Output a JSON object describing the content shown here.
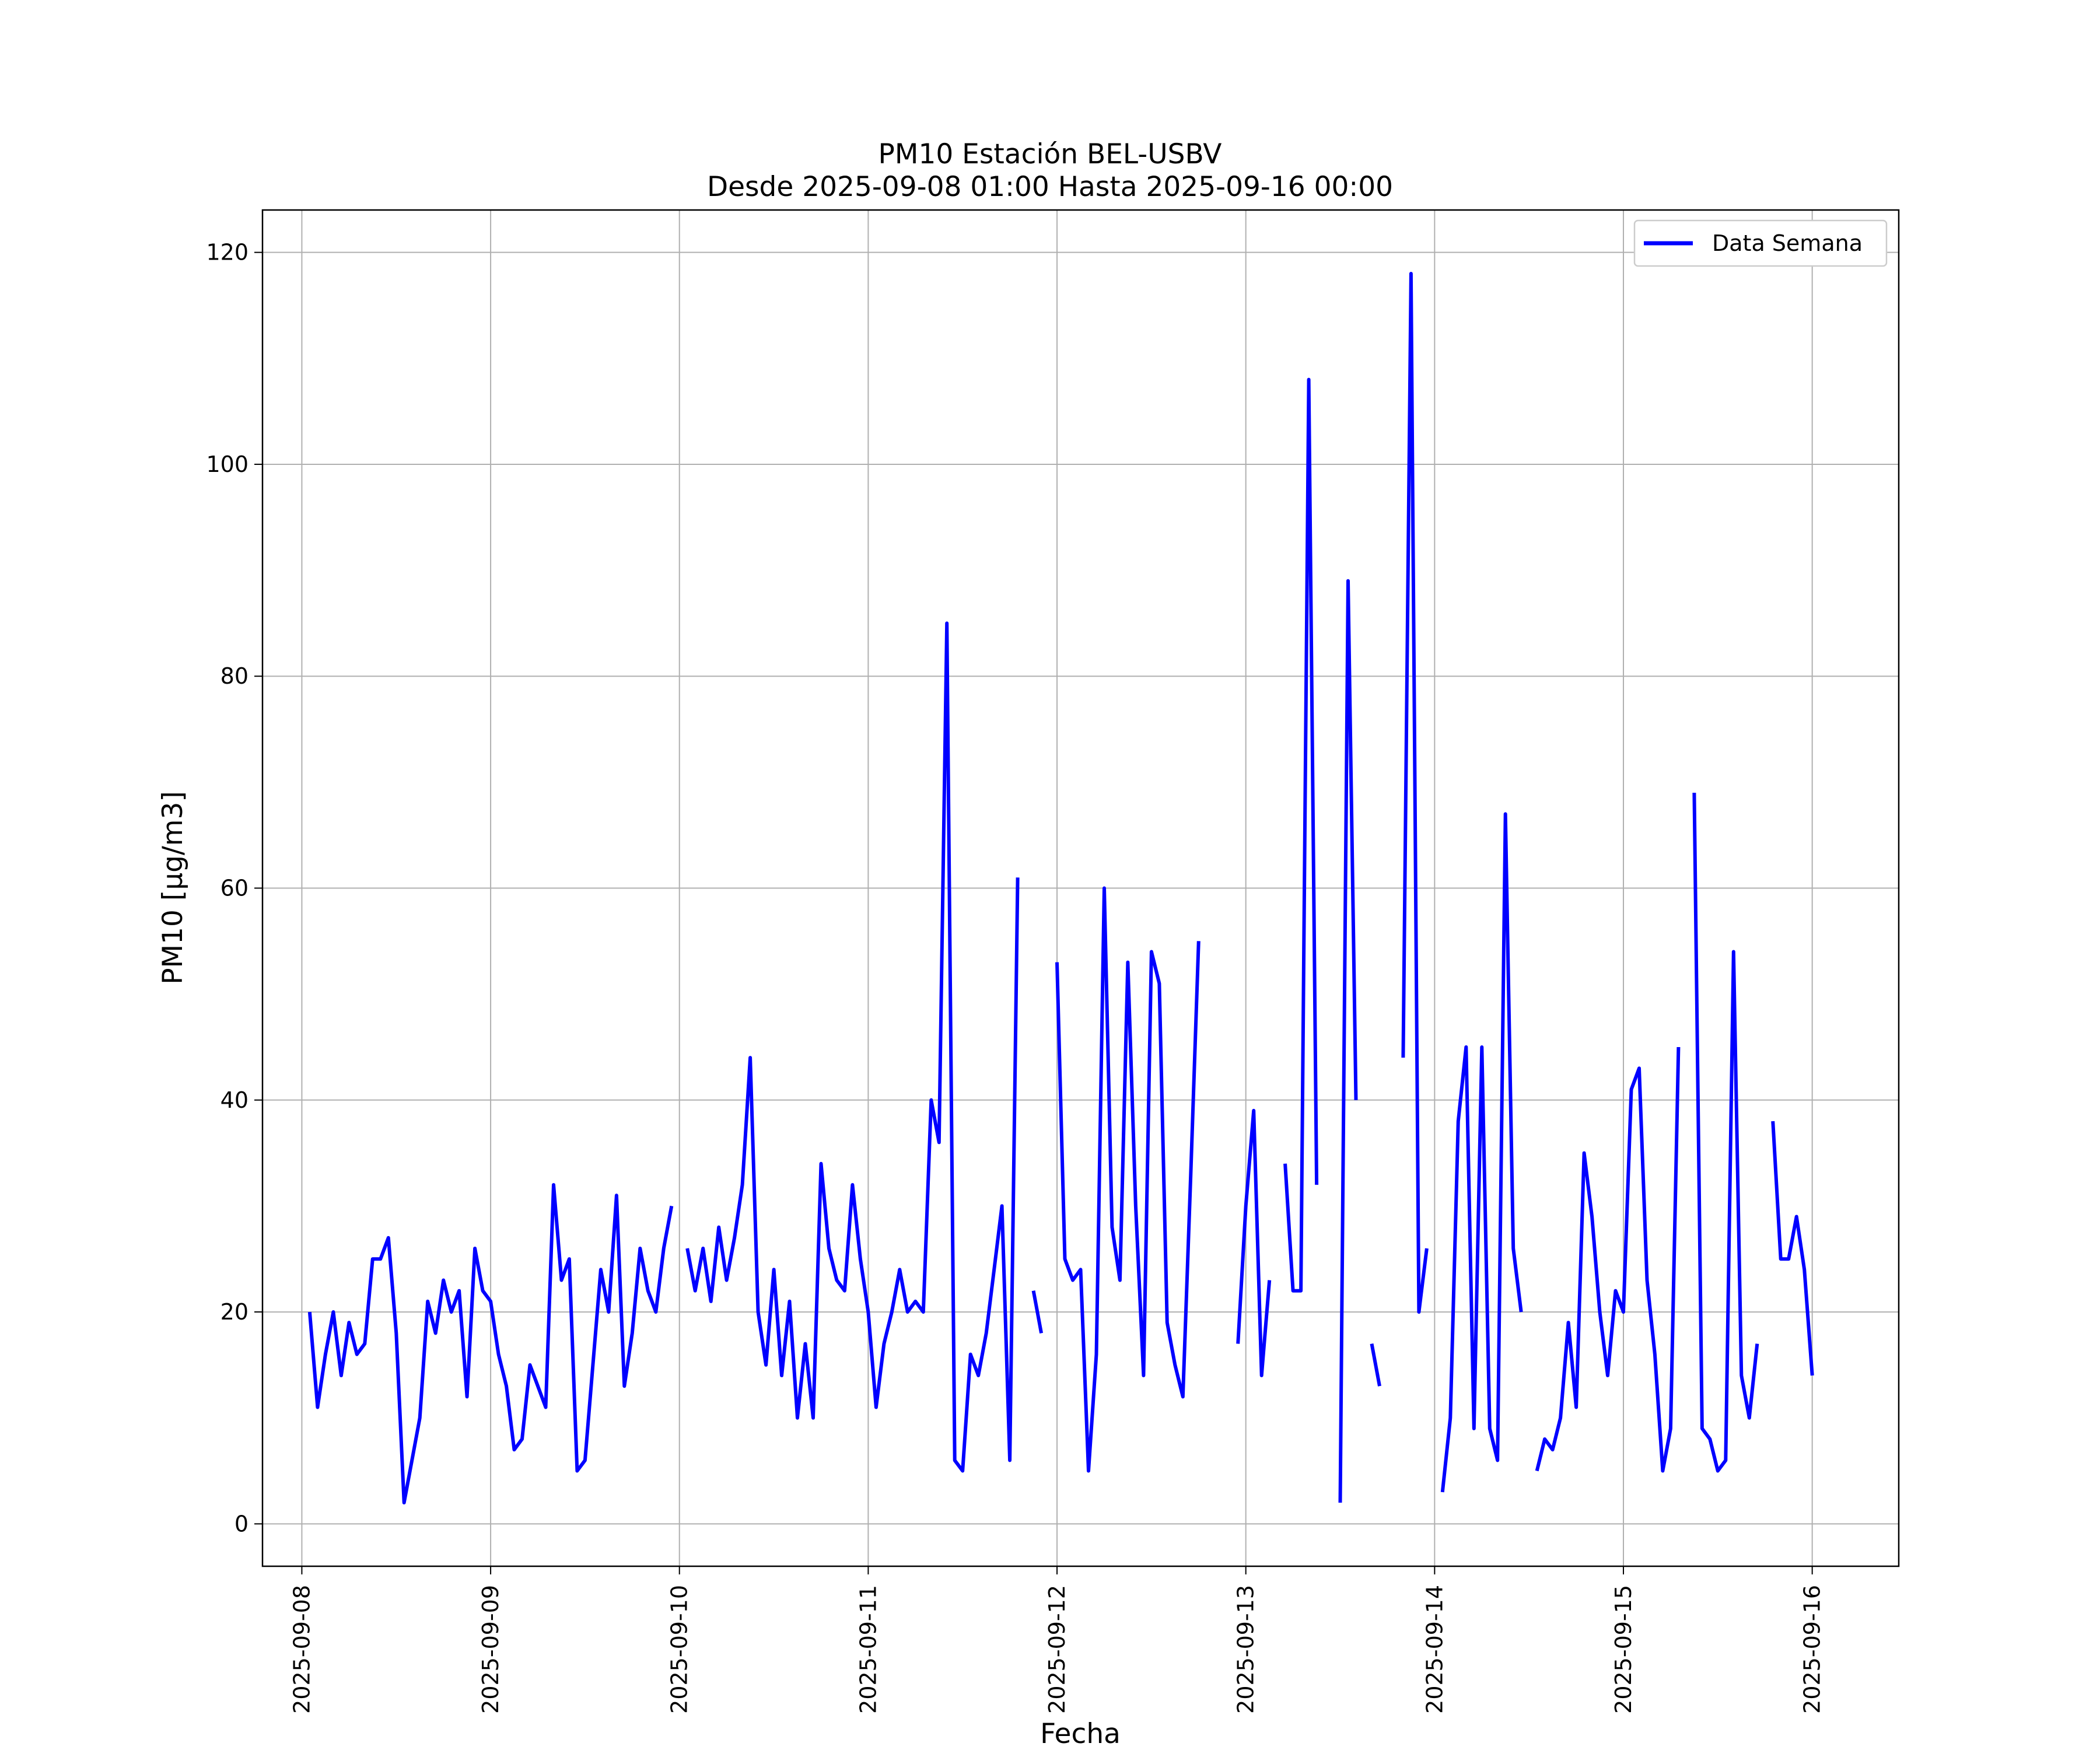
{
  "chart_data": {
    "type": "line",
    "title": "PM10 Estación BEL-USBV",
    "subtitle": "Desde 2025-09-08 01:00 Hasta 2025-09-16 00:00",
    "xlabel": "Fecha",
    "ylabel": "PM10 [μg/m3]",
    "xlim": [
      "2025-09-07 19:00",
      "2025-09-16 11:00"
    ],
    "ylim": [
      -4,
      124
    ],
    "grid": true,
    "legend_position": "top-right",
    "x_ticks": [
      "2025-09-08",
      "2025-09-09",
      "2025-09-10",
      "2025-09-11",
      "2025-09-12",
      "2025-09-13",
      "2025-09-14",
      "2025-09-15",
      "2025-09-16"
    ],
    "y_ticks": [
      "0",
      "20",
      "40",
      "60",
      "80",
      "100",
      "120"
    ],
    "series": [
      {
        "name": "Data Semana",
        "color": "#0000ff",
        "segments": [
          [
            [
              "2025-09-08 01:00",
              20
            ],
            [
              "2025-09-08 02:00",
              11
            ],
            [
              "2025-09-08 03:00",
              16
            ],
            [
              "2025-09-08 04:00",
              20
            ],
            [
              "2025-09-08 05:00",
              14
            ],
            [
              "2025-09-08 06:00",
              19
            ],
            [
              "2025-09-08 07:00",
              16
            ],
            [
              "2025-09-08 08:00",
              17
            ],
            [
              "2025-09-08 09:00",
              25
            ],
            [
              "2025-09-08 10:00",
              25
            ],
            [
              "2025-09-08 11:00",
              27
            ],
            [
              "2025-09-08 12:00",
              18
            ],
            [
              "2025-09-08 13:00",
              2
            ],
            [
              "2025-09-08 14:00",
              6
            ],
            [
              "2025-09-08 15:00",
              10
            ],
            [
              "2025-09-08 16:00",
              21
            ],
            [
              "2025-09-08 17:00",
              18
            ],
            [
              "2025-09-08 18:00",
              23
            ],
            [
              "2025-09-08 19:00",
              20
            ],
            [
              "2025-09-08 20:00",
              22
            ],
            [
              "2025-09-08 21:00",
              12
            ],
            [
              "2025-09-08 22:00",
              26
            ],
            [
              "2025-09-08 23:00",
              22
            ],
            [
              "2025-09-09 00:00",
              21
            ],
            [
              "2025-09-09 01:00",
              16
            ],
            [
              "2025-09-09 02:00",
              13
            ],
            [
              "2025-09-09 03:00",
              7
            ],
            [
              "2025-09-09 04:00",
              8
            ],
            [
              "2025-09-09 05:00",
              15
            ],
            [
              "2025-09-09 06:00",
              13
            ],
            [
              "2025-09-09 07:00",
              11
            ],
            [
              "2025-09-09 08:00",
              32
            ],
            [
              "2025-09-09 09:00",
              23
            ],
            [
              "2025-09-09 10:00",
              25
            ],
            [
              "2025-09-09 11:00",
              5
            ],
            [
              "2025-09-09 12:00",
              6
            ],
            [
              "2025-09-09 13:00",
              15
            ],
            [
              "2025-09-09 14:00",
              24
            ],
            [
              "2025-09-09 15:00",
              20
            ],
            [
              "2025-09-09 16:00",
              31
            ],
            [
              "2025-09-09 17:00",
              13
            ],
            [
              "2025-09-09 18:00",
              18
            ],
            [
              "2025-09-09 19:00",
              26
            ],
            [
              "2025-09-09 20:00",
              22
            ],
            [
              "2025-09-09 21:00",
              20
            ],
            [
              "2025-09-09 22:00",
              26
            ],
            [
              "2025-09-09 23:00",
              30
            ]
          ],
          [
            [
              "2025-09-10 01:00",
              26
            ],
            [
              "2025-09-10 02:00",
              22
            ],
            [
              "2025-09-10 03:00",
              26
            ],
            [
              "2025-09-10 04:00",
              21
            ],
            [
              "2025-09-10 05:00",
              28
            ],
            [
              "2025-09-10 06:00",
              23
            ],
            [
              "2025-09-10 07:00",
              27
            ],
            [
              "2025-09-10 08:00",
              32
            ],
            [
              "2025-09-10 09:00",
              44
            ],
            [
              "2025-09-10 10:00",
              20
            ],
            [
              "2025-09-10 11:00",
              15
            ],
            [
              "2025-09-10 12:00",
              24
            ],
            [
              "2025-09-10 13:00",
              14
            ],
            [
              "2025-09-10 14:00",
              21
            ],
            [
              "2025-09-10 15:00",
              10
            ],
            [
              "2025-09-10 16:00",
              17
            ],
            [
              "2025-09-10 17:00",
              10
            ],
            [
              "2025-09-10 18:00",
              34
            ],
            [
              "2025-09-10 19:00",
              26
            ],
            [
              "2025-09-10 20:00",
              23
            ],
            [
              "2025-09-10 21:00",
              22
            ],
            [
              "2025-09-10 22:00",
              32
            ],
            [
              "2025-09-10 23:00",
              25
            ],
            [
              "2025-09-11 00:00",
              20
            ],
            [
              "2025-09-11 01:00",
              11
            ],
            [
              "2025-09-11 02:00",
              17
            ],
            [
              "2025-09-11 03:00",
              20
            ],
            [
              "2025-09-11 04:00",
              24
            ],
            [
              "2025-09-11 05:00",
              20
            ],
            [
              "2025-09-11 06:00",
              21
            ],
            [
              "2025-09-11 07:00",
              20
            ],
            [
              "2025-09-11 08:00",
              40
            ],
            [
              "2025-09-11 09:00",
              36
            ],
            [
              "2025-09-11 10:00",
              85
            ],
            [
              "2025-09-11 11:00",
              6
            ],
            [
              "2025-09-11 12:00",
              5
            ],
            [
              "2025-09-11 13:00",
              16
            ],
            [
              "2025-09-11 14:00",
              14
            ],
            [
              "2025-09-11 15:00",
              18
            ],
            [
              "2025-09-11 16:00",
              24
            ],
            [
              "2025-09-11 17:00",
              30
            ],
            [
              "2025-09-11 18:00",
              6
            ],
            [
              "2025-09-11 19:00",
              61
            ]
          ],
          [
            [
              "2025-09-11 21:00",
              22
            ],
            [
              "2025-09-11 22:00",
              18
            ]
          ],
          [
            [
              "2025-09-12 00:00",
              53
            ],
            [
              "2025-09-12 01:00",
              25
            ],
            [
              "2025-09-12 02:00",
              23
            ],
            [
              "2025-09-12 03:00",
              24
            ],
            [
              "2025-09-12 04:00",
              5
            ],
            [
              "2025-09-12 05:00",
              16
            ],
            [
              "2025-09-12 06:00",
              60
            ],
            [
              "2025-09-12 07:00",
              28
            ],
            [
              "2025-09-12 08:00",
              23
            ],
            [
              "2025-09-12 09:00",
              53
            ],
            [
              "2025-09-12 10:00",
              30
            ],
            [
              "2025-09-12 11:00",
              14
            ],
            [
              "2025-09-12 12:00",
              54
            ],
            [
              "2025-09-12 13:00",
              51
            ],
            [
              "2025-09-12 14:00",
              19
            ],
            [
              "2025-09-12 15:00",
              15
            ],
            [
              "2025-09-12 16:00",
              12
            ],
            [
              "2025-09-12 17:00",
              33
            ],
            [
              "2025-09-12 18:00",
              55
            ]
          ],
          [
            [
              "2025-09-12 23:00",
              17
            ],
            [
              "2025-09-13 00:00",
              30
            ],
            [
              "2025-09-13 01:00",
              39
            ],
            [
              "2025-09-13 02:00",
              14
            ],
            [
              "2025-09-13 03:00",
              23
            ]
          ],
          [
            [
              "2025-09-13 05:00",
              34
            ],
            [
              "2025-09-13 06:00",
              22
            ],
            [
              "2025-09-13 07:00",
              22
            ],
            [
              "2025-09-13 08:00",
              108
            ],
            [
              "2025-09-13 09:00",
              32
            ]
          ],
          [
            [
              "2025-09-13 12:00",
              2
            ],
            [
              "2025-09-13 13:00",
              89
            ],
            [
              "2025-09-13 14:00",
              40
            ]
          ],
          [
            [
              "2025-09-13 16:00",
              17
            ],
            [
              "2025-09-13 17:00",
              13
            ]
          ],
          [
            [
              "2025-09-13 20:00",
              44
            ],
            [
              "2025-09-13 21:00",
              118
            ],
            [
              "2025-09-13 22:00",
              20
            ],
            [
              "2025-09-13 23:00",
              26
            ]
          ],
          [
            [
              "2025-09-14 01:00",
              3
            ],
            [
              "2025-09-14 02:00",
              10
            ],
            [
              "2025-09-14 03:00",
              38
            ],
            [
              "2025-09-14 04:00",
              45
            ],
            [
              "2025-09-14 05:00",
              9
            ],
            [
              "2025-09-14 06:00",
              45
            ],
            [
              "2025-09-14 07:00",
              9
            ],
            [
              "2025-09-14 08:00",
              6
            ],
            [
              "2025-09-14 09:00",
              67
            ],
            [
              "2025-09-14 10:00",
              26
            ],
            [
              "2025-09-14 11:00",
              20
            ]
          ],
          [
            [
              "2025-09-14 13:00",
              5
            ],
            [
              "2025-09-14 14:00",
              8
            ],
            [
              "2025-09-14 15:00",
              7
            ],
            [
              "2025-09-14 16:00",
              10
            ],
            [
              "2025-09-14 17:00",
              19
            ],
            [
              "2025-09-14 18:00",
              11
            ],
            [
              "2025-09-14 19:00",
              35
            ],
            [
              "2025-09-14 20:00",
              29
            ],
            [
              "2025-09-14 21:00",
              20
            ],
            [
              "2025-09-14 22:00",
              14
            ],
            [
              "2025-09-14 23:00",
              22
            ],
            [
              "2025-09-15 00:00",
              20
            ],
            [
              "2025-09-15 01:00",
              41
            ],
            [
              "2025-09-15 02:00",
              43
            ],
            [
              "2025-09-15 03:00",
              23
            ],
            [
              "2025-09-15 04:00",
              16
            ],
            [
              "2025-09-15 05:00",
              5
            ],
            [
              "2025-09-15 06:00",
              9
            ],
            [
              "2025-09-15 07:00",
              45
            ]
          ],
          [
            [
              "2025-09-15 09:00",
              69
            ],
            [
              "2025-09-15 10:00",
              9
            ],
            [
              "2025-09-15 11:00",
              8
            ],
            [
              "2025-09-15 12:00",
              5
            ],
            [
              "2025-09-15 13:00",
              6
            ],
            [
              "2025-09-15 14:00",
              54
            ],
            [
              "2025-09-15 15:00",
              14
            ],
            [
              "2025-09-15 16:00",
              10
            ],
            [
              "2025-09-15 17:00",
              17
            ]
          ],
          [
            [
              "2025-09-15 19:00",
              38
            ],
            [
              "2025-09-15 20:00",
              25
            ],
            [
              "2025-09-15 21:00",
              25
            ],
            [
              "2025-09-15 22:00",
              29
            ],
            [
              "2025-09-15 23:00",
              24
            ],
            [
              "2025-09-16 00:00",
              14
            ]
          ]
        ]
      }
    ]
  }
}
